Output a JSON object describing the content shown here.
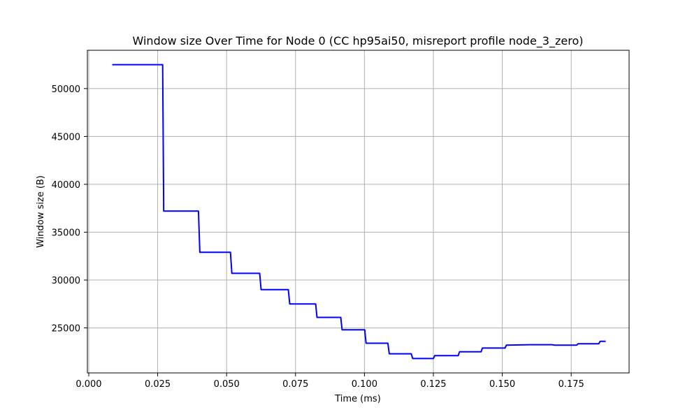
{
  "chart_data": {
    "type": "line",
    "title": "Window size Over Time for Node 0 (CC hp95ai50, misreport profile node_3_zero)",
    "xlabel": "Time (ms)",
    "ylabel": "Window size (B)",
    "xlim": [
      -0.0005,
      0.196
    ],
    "ylim": [
      20300,
      54000
    ],
    "x_ticks": [
      {
        "value": 0.0,
        "label": "0.000"
      },
      {
        "value": 0.025,
        "label": "0.025"
      },
      {
        "value": 0.05,
        "label": "0.050"
      },
      {
        "value": 0.075,
        "label": "0.075"
      },
      {
        "value": 0.1,
        "label": "0.100"
      },
      {
        "value": 0.125,
        "label": "0.125"
      },
      {
        "value": 0.15,
        "label": "0.150"
      },
      {
        "value": 0.175,
        "label": "0.175"
      }
    ],
    "y_ticks": [
      {
        "value": 25000,
        "label": "25000"
      },
      {
        "value": 30000,
        "label": "30000"
      },
      {
        "value": 35000,
        "label": "35000"
      },
      {
        "value": 40000,
        "label": "40000"
      },
      {
        "value": 45000,
        "label": "45000"
      },
      {
        "value": 50000,
        "label": "50000"
      }
    ],
    "grid": true,
    "series": [
      {
        "color": "#0000ff",
        "x": [
          0.0085,
          0.0268,
          0.0272,
          0.0398,
          0.0403,
          0.0514,
          0.0519,
          0.062,
          0.0625,
          0.0724,
          0.0729,
          0.0823,
          0.0828,
          0.0914,
          0.0919,
          0.1001,
          0.1006,
          0.1085,
          0.109,
          0.117,
          0.1175,
          0.125,
          0.1255,
          0.134,
          0.1345,
          0.1423,
          0.1428,
          0.151,
          0.1515,
          0.16,
          0.168,
          0.169,
          0.177,
          0.1775,
          0.185,
          0.1855,
          0.1875
        ],
        "y": [
          52500,
          52500,
          37200,
          37200,
          32900,
          32900,
          30700,
          30700,
          29000,
          29000,
          27500,
          27500,
          26100,
          26100,
          24800,
          24800,
          23400,
          23400,
          22300,
          22300,
          21800,
          21800,
          22100,
          22100,
          22500,
          22500,
          22900,
          22900,
          23200,
          23250,
          23250,
          23200,
          23200,
          23350,
          23350,
          23600,
          23600
        ]
      }
    ]
  }
}
